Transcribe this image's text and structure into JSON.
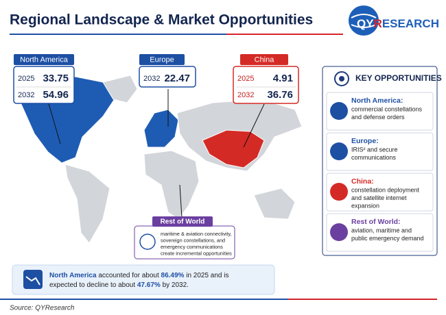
{
  "header": {
    "title": "Regional Landscape & Market Opportunities",
    "logo": [
      "QY",
      "R",
      "ESEARCH"
    ]
  },
  "regions": [
    {
      "name": "North America",
      "rows": [
        [
          "2025",
          "33.75"
        ],
        [
          "2032",
          "54.96"
        ]
      ]
    },
    {
      "name": "Europe",
      "rows": [
        [
          "2032",
          "22.47"
        ]
      ]
    },
    {
      "name": "China",
      "rows": [
        [
          "2025",
          "4.91"
        ],
        [
          "2032",
          "36.76"
        ]
      ]
    }
  ],
  "rest_of_world": {
    "name": "Rest of World",
    "lines": [
      "maritime & aviation connectivity,",
      "sovereign constellations, and",
      "emergency communications",
      "create incremental opportunities"
    ]
  },
  "opportunities": {
    "title": "KEY OPPORTUNITIES",
    "items": [
      {
        "heading": "North America:",
        "lines": [
          "commercial constellations",
          "and defense orders"
        ]
      },
      {
        "heading": "Europe:",
        "lines": [
          "IRIS² and secure",
          "communications"
        ]
      },
      {
        "heading": "China:",
        "lines": [
          "constellation deployment",
          "and satellite internet",
          "expansion"
        ]
      },
      {
        "heading": "Rest of World:",
        "lines": [
          "aviation, maritime and",
          "public emergency demand"
        ]
      }
    ]
  },
  "summary": {
    "lines": [
      [
        "North America",
        " accounted for about ",
        "86.49%",
        " in 2025 and is"
      ],
      [
        "expected to decline to about ",
        "47.67%",
        " by 2032."
      ]
    ]
  },
  "source": "Source: QYResearch"
}
